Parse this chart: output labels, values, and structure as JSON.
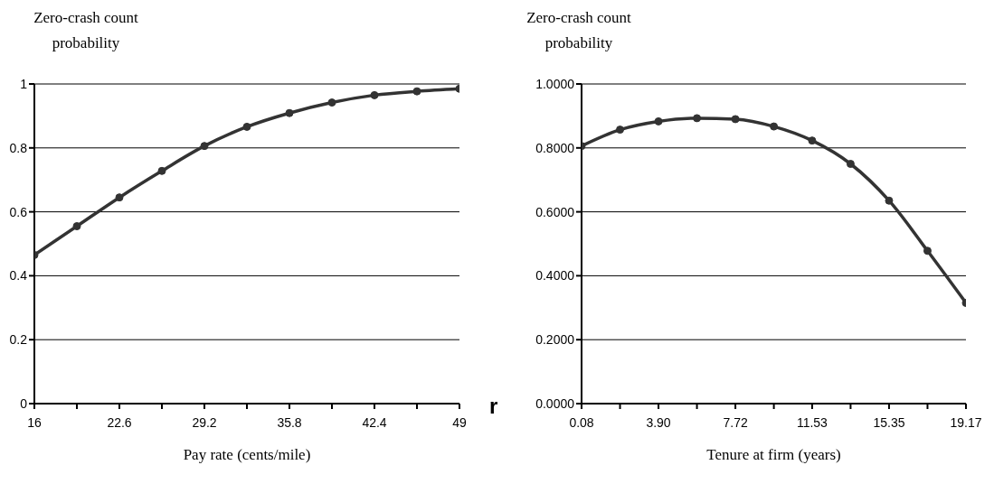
{
  "chart_data": [
    {
      "type": "line",
      "ylabel": "Zero-crash count probability",
      "xlabel": "Pay rate (cents/mile)",
      "x": [
        16,
        19.3,
        22.6,
        25.9,
        29.2,
        32.5,
        35.8,
        39.1,
        42.4,
        45.7,
        49
      ],
      "series": [
        {
          "color": "#333333",
          "values": [
            0.465,
            0.555,
            0.645,
            0.728,
            0.806,
            0.866,
            0.909,
            0.942,
            0.965,
            0.977,
            0.985
          ]
        }
      ],
      "xlim": [
        16,
        49
      ],
      "xticks": [
        16,
        {
          "value": 19.3,
          "label": null
        },
        22.6,
        {
          "value": 25.9,
          "label": null
        },
        29.2,
        {
          "value": 32.5,
          "label": null
        },
        35.8,
        {
          "value": 39.1,
          "label": null
        },
        42.4,
        {
          "value": 45.7,
          "label": null
        },
        49
      ],
      "ylim": [
        0,
        1
      ],
      "yticks": [
        0,
        0.2,
        0.4,
        0.6,
        0.8,
        1
      ],
      "grid": "y",
      "marker": "circle",
      "line_style": "solid"
    },
    {
      "type": "line",
      "ylabel": "Zero-crash count probability",
      "xlabel": "Tenure at firm (years)",
      "x": [
        0.08,
        1.99,
        3.9,
        5.81,
        7.72,
        9.63,
        11.53,
        13.44,
        15.35,
        17.26,
        19.17
      ],
      "series": [
        {
          "color": "#333333",
          "values": [
            0.806,
            0.857,
            0.883,
            0.893,
            0.89,
            0.867,
            0.823,
            0.75,
            0.635,
            0.478,
            0.315
          ]
        }
      ],
      "xlim": [
        0.08,
        19.17
      ],
      "xticks": [
        0.08,
        {
          "value": 1.99,
          "label": null
        },
        {
          "value": 3.9,
          "label": "3.90"
        },
        {
          "value": 5.81,
          "label": null
        },
        7.72,
        {
          "value": 9.63,
          "label": null
        },
        11.53,
        {
          "value": 13.44,
          "label": null
        },
        15.35,
        {
          "value": 17.26,
          "label": null
        },
        19.17
      ],
      "ylim": [
        0,
        1
      ],
      "yticks": [
        {
          "value": 0,
          "label": "0.0000"
        },
        {
          "value": 0.2,
          "label": "0.2000"
        },
        {
          "value": 0.4,
          "label": "0.4000"
        },
        {
          "value": 0.6,
          "label": "0.6000"
        },
        {
          "value": 0.8,
          "label": "0.8000"
        },
        {
          "value": 1,
          "label": "1.0000"
        }
      ],
      "grid": "y",
      "marker": "circle",
      "line_style": "solid",
      "annotations": [
        "r"
      ]
    }
  ]
}
